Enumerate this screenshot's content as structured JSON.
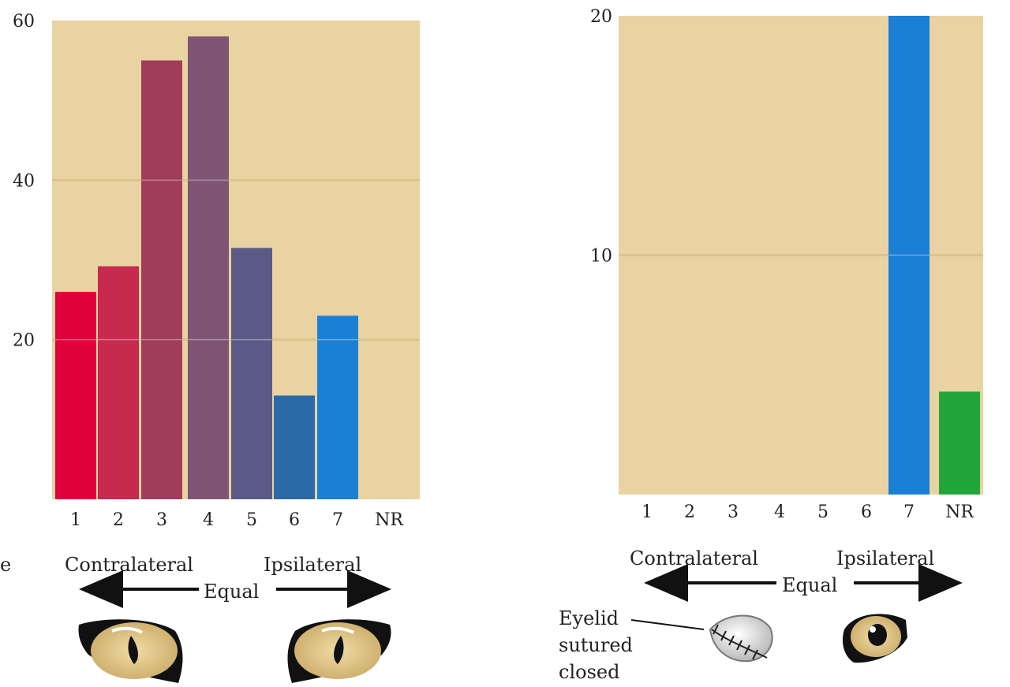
{
  "chart_data": [
    {
      "type": "bar",
      "title": "",
      "xlabel": "",
      "ylabel": "",
      "categories": [
        "1",
        "2",
        "3",
        "4",
        "5",
        "6",
        "7",
        "NR"
      ],
      "values": [
        26,
        29.2,
        55,
        58,
        31.5,
        13,
        23,
        0
      ],
      "ylim": [
        0,
        60
      ],
      "yticks": [
        "20",
        "40",
        "60"
      ],
      "grid": true,
      "colors": [
        "#e0003b",
        "#c7294f",
        "#a13c5b",
        "#7f5475",
        "#5b5a87",
        "#2b6aa6",
        "#1b7fd6",
        "#e9d3a2"
      ],
      "background": "#e9d3a2",
      "gridline_color": "#c8a45a",
      "annotation": {
        "contralateral": "Contralateral",
        "equal": "Equal",
        "ipsilateral": "Ipsilateral",
        "left_edge_fragment": "e"
      }
    },
    {
      "type": "bar",
      "title": "",
      "xlabel": "",
      "ylabel": "",
      "categories": [
        "1",
        "2",
        "3",
        "4",
        "5",
        "6",
        "7",
        "NR"
      ],
      "values": [
        0,
        0,
        0,
        0,
        0,
        0,
        20,
        4.3
      ],
      "ylim": [
        0,
        20
      ],
      "yticks": [
        "10",
        "20"
      ],
      "grid": true,
      "colors": [
        "#1b7fd6",
        "#1b7fd6",
        "#1b7fd6",
        "#1b7fd6",
        "#1b7fd6",
        "#1b7fd6",
        "#1b7fd6",
        "#22a63a"
      ],
      "background": "#e9d3a2",
      "gridline_color": "#c8a45a",
      "annotation": {
        "contralateral": "Contralateral",
        "equal": "Equal",
        "ipsilateral": "Ipsilateral",
        "eyelid_note": [
          "Eyelid",
          "sutured",
          "closed"
        ]
      }
    }
  ]
}
